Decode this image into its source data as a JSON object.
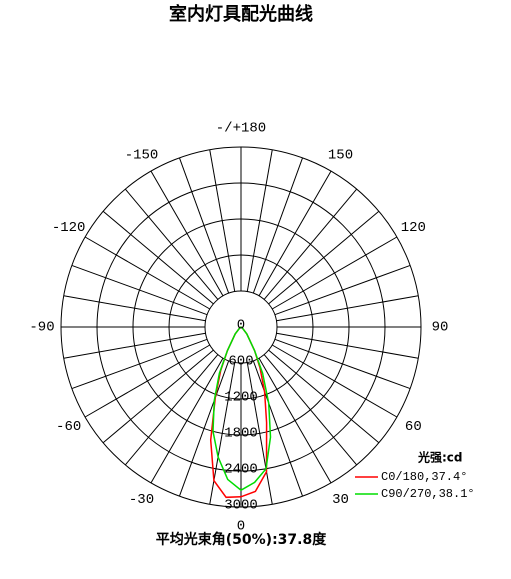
{
  "chart_data": {
    "type": "polar",
    "title": "室内灯具配光曲线",
    "theta": [
      -90,
      -60,
      -40,
      -30,
      -25,
      -20,
      -15,
      -10,
      -5,
      0,
      5,
      10,
      15,
      20,
      25,
      30,
      40,
      60,
      90
    ],
    "series": [
      {
        "name": "C0/180,37.4°",
        "color": "#ff0000",
        "values": [
          0,
          20,
          150,
          450,
          800,
          1250,
          1950,
          2600,
          2850,
          2830,
          2750,
          2450,
          1650,
          1150,
          750,
          450,
          150,
          20,
          0
        ]
      },
      {
        "name": "C90/270,38.1°",
        "color": "#00dd00",
        "values": [
          0,
          20,
          150,
          450,
          850,
          1300,
          1800,
          2200,
          2550,
          2720,
          2600,
          2400,
          1900,
          1350,
          850,
          450,
          150,
          20,
          0
        ]
      }
    ],
    "rlim": [
      0,
      3000
    ],
    "rticks": [
      0,
      600,
      1200,
      1800,
      2400,
      3000
    ],
    "angle_ticks": [
      {
        "value": 180,
        "label": "-/+180"
      },
      150,
      120,
      90,
      60,
      30,
      0,
      -30,
      -60,
      -90,
      -120,
      -150
    ],
    "legend_title": "光强:cd",
    "footnote": "平均光束角(50%):37.8度"
  }
}
